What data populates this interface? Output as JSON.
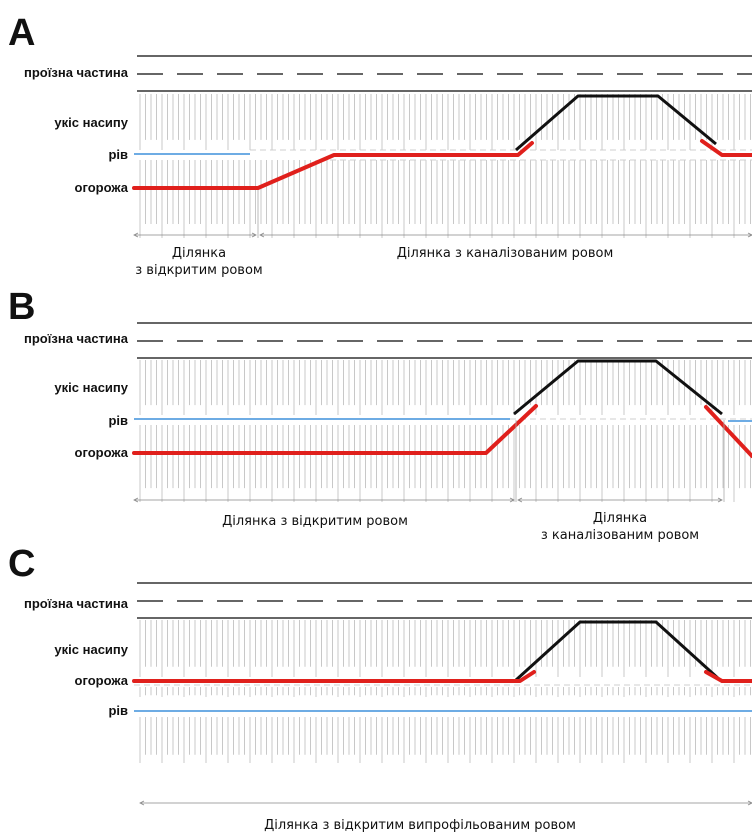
{
  "panels": [
    {
      "letter": "A",
      "labels": {
        "road": "проїзна частина",
        "slope": "укіс насипу",
        "ditch": "рів",
        "fence": "огорожа"
      },
      "sections": [
        {
          "line1": "Ділянка",
          "line2": "з відкритим ровом"
        },
        {
          "line1": "Ділянка з каналізованим ровом",
          "line2": ""
        }
      ]
    },
    {
      "letter": "B",
      "labels": {
        "road": "проїзна частина",
        "slope": "укіс насипу",
        "ditch": "рів",
        "fence": "огорожа"
      },
      "sections": [
        {
          "line1": "Ділянка з відкритим ровом",
          "line2": ""
        },
        {
          "line1": "Ділянка",
          "line2": "з каналізованим ровом"
        }
      ]
    },
    {
      "letter": "C",
      "labels": {
        "road": "проїзна частина",
        "slope": "укіс насипу",
        "ditch": "рів",
        "fence": "огорожа"
      },
      "sections": [
        {
          "line1": "Ділянка з відкритим випрофільованим ровом",
          "line2": ""
        }
      ]
    }
  ],
  "colors": {
    "fence": "#e0201c",
    "ditch": "#5aa0e0",
    "bridge": "#111111",
    "hatch": "#c8c8c8",
    "road": "#333333"
  }
}
